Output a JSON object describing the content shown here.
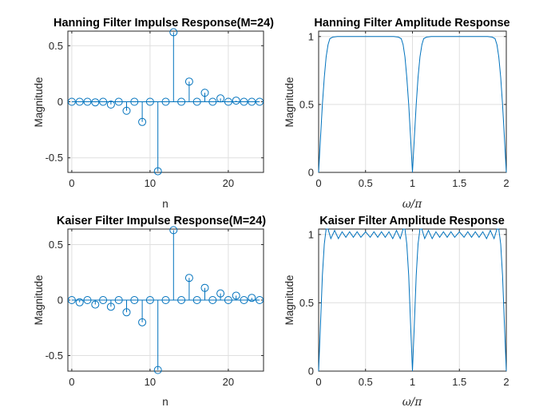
{
  "figure": {
    "colors": {
      "series": "#0072bd",
      "grid": "#dfdfdf",
      "axes": "#262626"
    }
  },
  "chart_data": [
    {
      "id": "p1",
      "type": "stem",
      "title": "Hanning Filter Impulse Response(M=24)",
      "xlabel": "n",
      "ylabel": "Magnitude",
      "xlim": [
        -0.5,
        24.5
      ],
      "ylim": [
        -0.63,
        0.63
      ],
      "xticks": [
        0,
        10,
        20
      ],
      "yticks": [
        -0.5,
        0,
        0.5
      ],
      "ytick_labels": [
        "-0.5",
        "0",
        "0.5"
      ],
      "grid": true,
      "x": [
        0,
        1,
        2,
        3,
        4,
        5,
        6,
        7,
        8,
        9,
        10,
        11,
        12,
        13,
        14,
        15,
        16,
        17,
        18,
        19,
        20,
        21,
        22,
        23,
        24
      ],
      "values": [
        0,
        0,
        0,
        -0.005,
        0,
        -0.025,
        0,
        -0.08,
        0,
        -0.18,
        0,
        -0.62,
        0,
        0.62,
        0,
        0.18,
        0,
        0.08,
        0,
        0.03,
        0,
        0.01,
        0,
        0,
        0
      ]
    },
    {
      "id": "p2",
      "type": "line",
      "title": "Hanning Filter Amplitude Response",
      "xlabel": "ω/π",
      "ylabel": "Magnitude",
      "xlim": [
        0,
        2
      ],
      "ylim": [
        0,
        1.04
      ],
      "xticks": [
        0,
        0.5,
        1,
        1.5,
        2
      ],
      "xtick_labels": [
        "0",
        "0.5",
        "1",
        "1.5",
        "2"
      ],
      "yticks": [
        0,
        0.5,
        1
      ],
      "ytick_labels": [
        "0",
        "0.5",
        "1"
      ],
      "grid": true,
      "x": [
        0,
        0.02,
        0.04,
        0.06,
        0.08,
        0.1,
        0.12,
        0.15,
        0.2,
        0.3,
        0.4,
        0.5,
        0.6,
        0.7,
        0.8,
        0.85,
        0.88,
        0.9,
        0.92,
        0.94,
        0.96,
        0.98,
        1.0,
        1.02,
        1.04,
        1.06,
        1.08,
        1.1,
        1.12,
        1.15,
        1.2,
        1.3,
        1.4,
        1.5,
        1.6,
        1.7,
        1.8,
        1.85,
        1.88,
        1.9,
        1.92,
        1.94,
        1.96,
        1.98,
        2.0
      ],
      "values": [
        0,
        0.26,
        0.5,
        0.7,
        0.85,
        0.94,
        0.985,
        0.996,
        1.0,
        1.0,
        1.0,
        1.0,
        1.0,
        1.0,
        1.0,
        0.996,
        0.985,
        0.94,
        0.85,
        0.7,
        0.5,
        0.26,
        0,
        0.26,
        0.5,
        0.7,
        0.85,
        0.94,
        0.985,
        0.996,
        1.0,
        1.0,
        1.0,
        1.0,
        1.0,
        1.0,
        1.0,
        0.996,
        0.985,
        0.94,
        0.85,
        0.7,
        0.5,
        0.26,
        0
      ]
    },
    {
      "id": "p3",
      "type": "stem",
      "title": "Kaiser Filter Impulse Response(M=24)",
      "xlabel": "n",
      "ylabel": "Magnitude",
      "xlim": [
        -0.5,
        24.5
      ],
      "ylim": [
        -0.64,
        0.64
      ],
      "xticks": [
        0,
        10,
        20
      ],
      "yticks": [
        -0.5,
        0,
        0.5
      ],
      "ytick_labels": [
        "-0.5",
        "0",
        "0.5"
      ],
      "grid": true,
      "x": [
        0,
        1,
        2,
        3,
        4,
        5,
        6,
        7,
        8,
        9,
        10,
        11,
        12,
        13,
        14,
        15,
        16,
        17,
        18,
        19,
        20,
        21,
        22,
        23,
        24
      ],
      "values": [
        0,
        -0.02,
        0,
        -0.04,
        0,
        -0.06,
        0,
        -0.11,
        0,
        -0.2,
        0,
        -0.63,
        0,
        0.63,
        0,
        0.2,
        0,
        0.11,
        0,
        0.06,
        0,
        0.04,
        0,
        0.02,
        0
      ]
    },
    {
      "id": "p4",
      "type": "line",
      "title": "Kaiser Filter Amplitude Response",
      "xlabel": "ω/π",
      "ylabel": "Magnitude",
      "xlim": [
        0,
        2
      ],
      "ylim": [
        0,
        1.04
      ],
      "xticks": [
        0,
        0.5,
        1,
        1.5,
        2
      ],
      "xtick_labels": [
        "0",
        "0.5",
        "1",
        "1.5",
        "2"
      ],
      "yticks": [
        0,
        0.5,
        1
      ],
      "ytick_labels": [
        "0",
        "0.5",
        "1"
      ],
      "grid": true,
      "x": [
        0,
        0.02,
        0.04,
        0.06,
        0.08,
        0.1,
        0.13,
        0.17,
        0.21,
        0.25,
        0.29,
        0.33,
        0.37,
        0.41,
        0.45,
        0.5,
        0.55,
        0.59,
        0.63,
        0.67,
        0.71,
        0.75,
        0.79,
        0.83,
        0.87,
        0.9,
        0.92,
        0.94,
        0.96,
        0.98,
        1.0,
        1.02,
        1.04,
        1.06,
        1.08,
        1.1,
        1.13,
        1.17,
        1.21,
        1.25,
        1.29,
        1.33,
        1.37,
        1.41,
        1.45,
        1.5,
        1.55,
        1.59,
        1.63,
        1.67,
        1.71,
        1.75,
        1.79,
        1.83,
        1.87,
        1.9,
        1.92,
        1.94,
        1.96,
        1.98,
        2.0
      ],
      "values": [
        0,
        0.35,
        0.7,
        0.93,
        1.04,
        1.04,
        0.97,
        1.03,
        0.97,
        1.02,
        0.98,
        1.02,
        0.98,
        1.02,
        0.98,
        1.02,
        0.98,
        1.02,
        0.98,
        1.02,
        0.98,
        1.02,
        0.97,
        1.03,
        0.97,
        1.04,
        1.04,
        0.93,
        0.7,
        0.35,
        0,
        0.35,
        0.7,
        0.93,
        1.04,
        1.04,
        0.97,
        1.03,
        0.97,
        1.02,
        0.98,
        1.02,
        0.98,
        1.02,
        0.98,
        1.02,
        0.98,
        1.02,
        0.98,
        1.02,
        0.98,
        1.02,
        0.97,
        1.03,
        0.97,
        1.04,
        1.04,
        0.93,
        0.7,
        0.35,
        0
      ]
    }
  ]
}
